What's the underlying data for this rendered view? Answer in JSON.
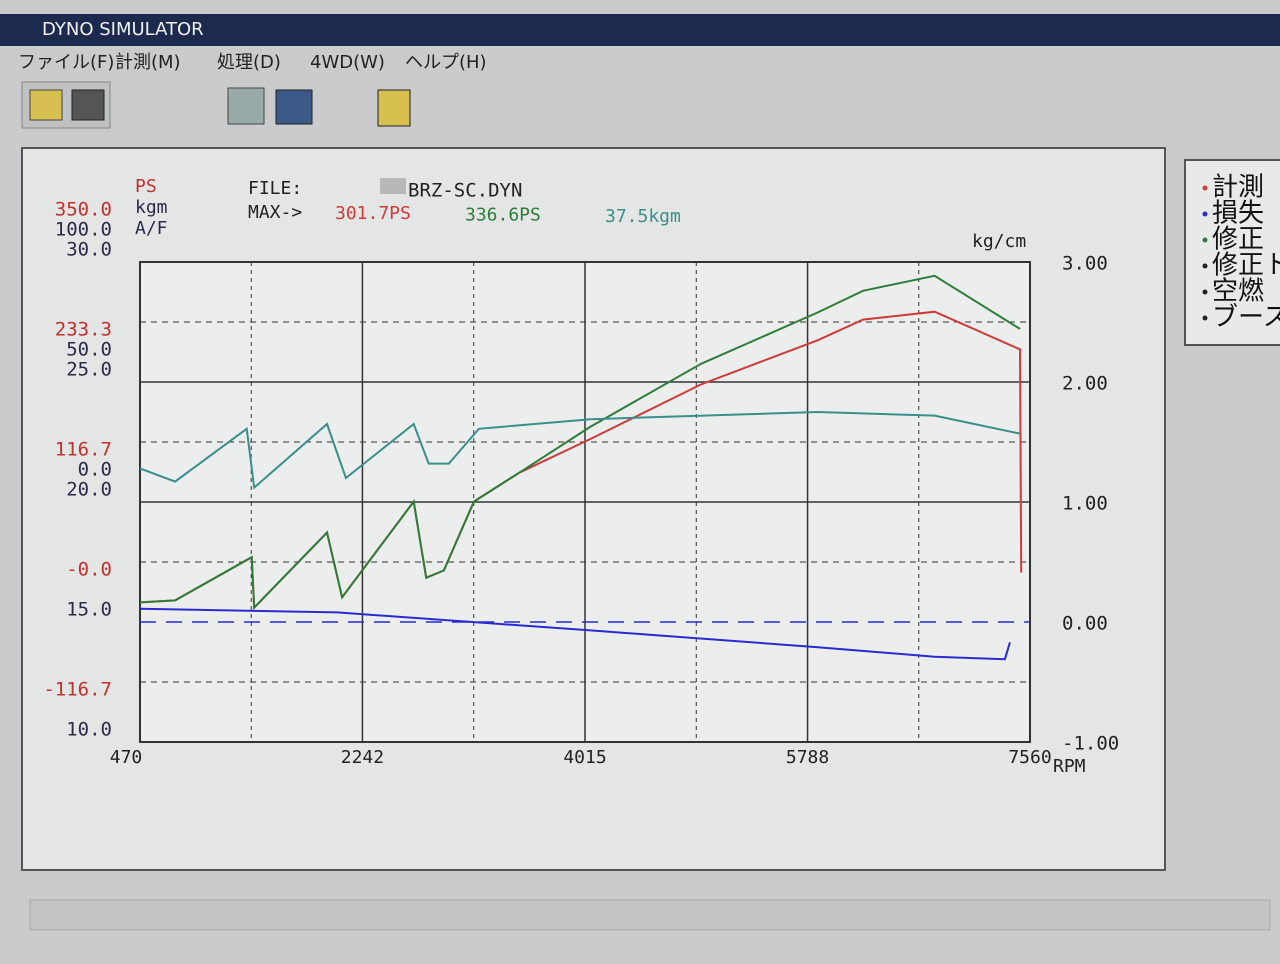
{
  "window": {
    "title": "DYNO SIMULATOR",
    "menu": [
      "ファイル(F)",
      "計測(M)",
      "処理(D)",
      "4WD(W)",
      "ヘルプ(H)"
    ]
  },
  "legend": [
    "計測",
    "損失",
    "修正",
    "修正ト",
    "空燃",
    "ブースト"
  ],
  "chart_data": {
    "type": "line",
    "units": [
      "PS",
      "kgm",
      "A/F"
    ],
    "file_label": "FILE:",
    "file_name": "BRZ-SC.DYN",
    "max_label": "MAX->",
    "max_values": [
      "301.7PS",
      "336.6PS",
      "37.5kgm"
    ],
    "x_label": "RPM",
    "y2_label": "kg/cm",
    "xlim": [
      470,
      7560
    ],
    "xticks": [
      470,
      2242,
      4015,
      5788,
      7560
    ],
    "ylim": [
      -116.7,
      350
    ],
    "yticks": [
      {
        "value": 350,
        "label": "350.0"
      },
      {
        "value": 233.3,
        "label": "233.3"
      },
      {
        "value": 116.7,
        "label": "116.7"
      },
      {
        "value": 0,
        "label": "-0.0"
      },
      {
        "value": -116.7,
        "label": "-116.7"
      }
    ],
    "kgm_lim": [
      -100,
      100
    ],
    "kgm_ticks": [
      {
        "value": 100,
        "label": "100.0"
      },
      {
        "value": 50,
        "label": "50.0"
      },
      {
        "value": 0,
        "label": "0.0"
      }
    ],
    "af_lim": [
      10,
      30
    ],
    "af_ticks": [
      {
        "value": 30,
        "label": "30.0"
      },
      {
        "value": 25,
        "label": "25.0"
      },
      {
        "value": 20,
        "label": "20.0"
      },
      {
        "value": 15,
        "label": "15.0"
      },
      {
        "value": 10,
        "label": "10.0"
      }
    ],
    "y2lim": [
      -1,
      3
    ],
    "y2ticks": [
      {
        "value": 3,
        "label": "3.00"
      },
      {
        "value": 2,
        "label": "2.00"
      },
      {
        "value": 1,
        "label": "1.00"
      },
      {
        "value": 0,
        "label": "0.00"
      },
      {
        "value": -1,
        "label": "-1.00"
      }
    ],
    "grid": true,
    "series": [
      {
        "color": "#d03a3a",
        "axis": "y",
        "x": [
          470,
          750,
          1360,
          1380,
          1960,
          2080,
          2650,
          2750,
          2890,
          3130,
          3490,
          4060,
          4940,
          5870,
          6230,
          6800,
          7480,
          7490
        ],
        "values": [
          19,
          21,
          63,
          14,
          87,
          24,
          117,
          43,
          50,
          117,
          145,
          178,
          231,
          274,
          294,
          301.7,
          265,
          48
        ]
      },
      {
        "color": "#2e7d3a",
        "axis": "y",
        "x": [
          470,
          750,
          1360,
          1380,
          1960,
          2080,
          2650,
          2750,
          2890,
          3130,
          3490,
          4060,
          4940,
          5870,
          6230,
          6800,
          7480
        ],
        "values": [
          19,
          21,
          63,
          14,
          87,
          24,
          117,
          43,
          50,
          117,
          145,
          190,
          251,
          301,
          322,
          336.6,
          285
        ]
      },
      {
        "color": "#3a8f8a",
        "axis": "kgm",
        "x": [
          470,
          750,
          1320,
          1380,
          1960,
          2110,
          2650,
          2770,
          2930,
          3170,
          4060,
          5870,
          6800,
          7480
        ],
        "values": [
          14,
          8.5,
          30.5,
          6,
          32.5,
          10,
          32.5,
          16,
          16,
          30.5,
          34.5,
          37.5,
          36,
          28.5
        ]
      },
      {
        "color": "#2a2ad0",
        "axis": "y2",
        "x": [
          470,
          2040,
          4060,
          5870,
          6800,
          7360,
          7400
        ],
        "values": [
          0.11,
          0.08,
          -0.07,
          -0.21,
          -0.29,
          -0.31,
          -0.17
        ]
      }
    ]
  }
}
